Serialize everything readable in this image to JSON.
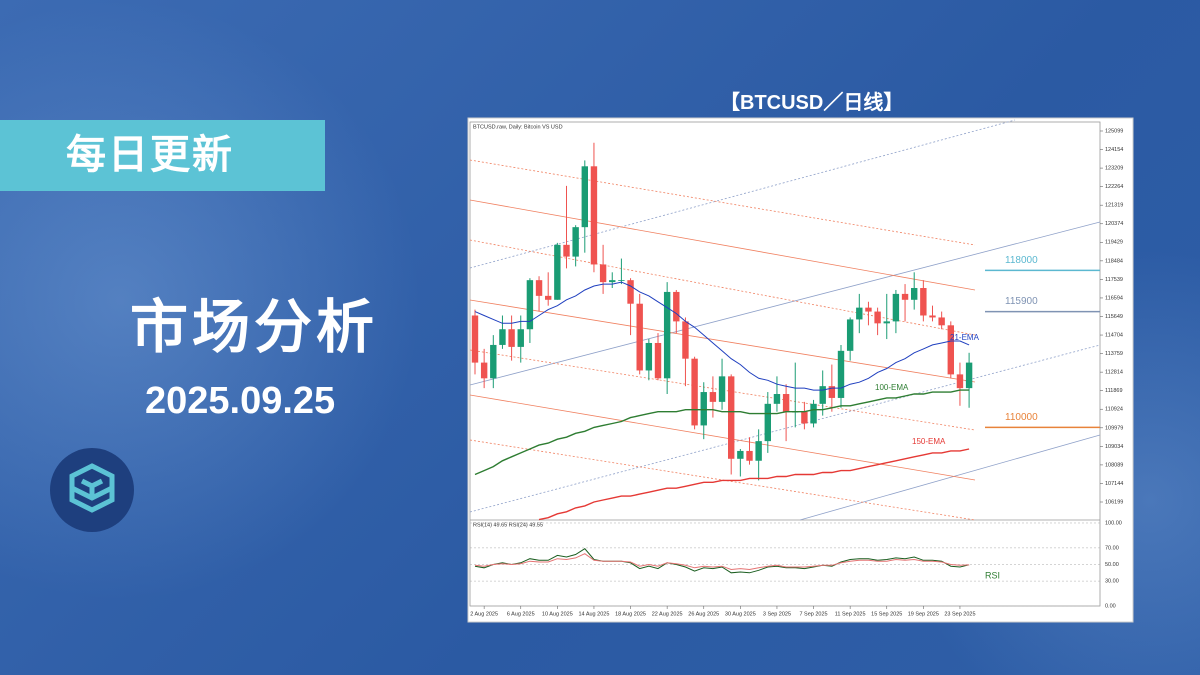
{
  "header": {
    "badge": "每日更新",
    "title": "市场分析",
    "date": "2025.09.25"
  },
  "chart_heading": "【BTCUSD／日线】",
  "chart_data": {
    "type": "candlestick",
    "title": "BTCUSD.raw, Daily: Bitcoin VS USD",
    "categories": [
      null,
      "2 Aug 2025",
      null,
      null,
      null,
      "6 Aug 2025",
      null,
      null,
      null,
      "10 Aug 2025",
      null,
      null,
      null,
      "14 Aug 2025",
      null,
      null,
      null,
      "18 Aug 2025",
      null,
      null,
      null,
      "22 Aug 2025",
      null,
      null,
      null,
      "26 Aug 2025",
      null,
      null,
      null,
      "30 Aug 2025",
      null,
      null,
      null,
      "3 Sep 2025",
      null,
      null,
      null,
      "7 Sep 2025",
      null,
      null,
      null,
      "11 Sep 2025",
      null,
      null,
      null,
      "15 Sep 2025",
      null,
      null,
      null,
      "19 Sep 2025",
      null,
      null,
      null,
      "23 Sep 2025",
      null
    ],
    "open": [
      115700,
      113300,
      112500,
      114200,
      115000,
      114100,
      115000,
      117500,
      116700,
      116500,
      119300,
      118700,
      120200,
      123300,
      118300,
      117400,
      117500,
      117500,
      116300,
      112900,
      114300,
      112500,
      116900,
      115400,
      113500,
      110100,
      111800,
      111300,
      112600,
      108400,
      108800,
      108300,
      109300,
      111200,
      111700,
      110800,
      110800,
      110200,
      111200,
      112100,
      111500,
      113900,
      115500,
      116100,
      115900,
      115300,
      115400,
      116800,
      116500,
      117100,
      115700,
      115600,
      115200,
      112700,
      112000
    ],
    "high": [
      116000,
      114000,
      114700,
      115700,
      115700,
      115700,
      117600,
      117700,
      117900,
      119400,
      122300,
      120300,
      123600,
      124500,
      119300,
      117900,
      118600,
      117600,
      116800,
      114500,
      114800,
      117400,
      117000,
      115600,
      113600,
      112300,
      112600,
      113500,
      112700,
      108900,
      109500,
      109900,
      111800,
      112600,
      112200,
      113300,
      111300,
      111400,
      112900,
      113200,
      114200,
      115600,
      116800,
      116400,
      116100,
      116800,
      117000,
      117300,
      117900,
      117500,
      116200,
      115900,
      115400,
      113300,
      113800
    ],
    "low": [
      112700,
      112000,
      112000,
      114000,
      113400,
      113300,
      114300,
      115900,
      116200,
      116500,
      118100,
      118200,
      118900,
      117900,
      116800,
      117100,
      117300,
      114700,
      112700,
      112400,
      112400,
      111700,
      114800,
      112100,
      109900,
      109400,
      110500,
      110900,
      107600,
      107500,
      108100,
      107300,
      108700,
      110800,
      109300,
      110000,
      109900,
      110000,
      110600,
      110800,
      111000,
      113400,
      114800,
      115200,
      114700,
      114500,
      114800,
      115400,
      116000,
      115400,
      115400,
      115000,
      112500,
      111100,
      111000
    ],
    "close": [
      113300,
      112500,
      114200,
      115000,
      114100,
      115000,
      117500,
      116700,
      116500,
      119300,
      118700,
      120200,
      123300,
      118300,
      117400,
      117500,
      117500,
      116300,
      112900,
      114300,
      112500,
      116900,
      115400,
      113500,
      110100,
      111800,
      111300,
      112600,
      108400,
      108800,
      108300,
      109300,
      111200,
      111700,
      110800,
      110800,
      110200,
      111200,
      112100,
      111500,
      113900,
      115500,
      116100,
      115900,
      115300,
      115400,
      116800,
      116500,
      117100,
      115700,
      115600,
      115200,
      112700,
      112000,
      113300
    ],
    "up_color": "#1a9c74",
    "down_color": "#ef5350",
    "ylim": [
      105282,
      125557
    ],
    "yticks": [
      106199,
      107144,
      108089,
      109034,
      109979,
      110924,
      111869,
      112814,
      113759,
      114704,
      115649,
      116594,
      117539,
      118484,
      119429,
      120374,
      121319,
      122264,
      123209,
      124154,
      125099
    ],
    "overlays": [
      {
        "name": "21-EMA",
        "color": "#1f3fbf",
        "values": [
          115900,
          115700,
          115500,
          115300,
          115300,
          115400,
          115400,
          115700,
          116000,
          116200,
          116500,
          116700,
          117000,
          117200,
          117300,
          117300,
          117400,
          117200,
          116900,
          116700,
          116400,
          116100,
          115800,
          115400,
          115100,
          114700,
          114300,
          113900,
          113500,
          113200,
          112800,
          112500,
          112400,
          112200,
          112100,
          112000,
          112000,
          111900,
          111900,
          112000,
          112000,
          112200,
          112300,
          112500,
          112800,
          113000,
          113300,
          113500,
          113800,
          114000,
          114200,
          114300,
          114400,
          114400,
          114200
        ]
      },
      {
        "name": "100-EMA",
        "color": "#2e7d32",
        "values": [
          107600,
          107800,
          108000,
          108300,
          108500,
          108700,
          108900,
          109100,
          109200,
          109400,
          109500,
          109700,
          109800,
          110000,
          110100,
          110200,
          110300,
          110500,
          110600,
          110700,
          110800,
          110800,
          110800,
          110900,
          110900,
          110900,
          110900,
          110800,
          110800,
          110800,
          110700,
          110700,
          110700,
          110700,
          110800,
          110800,
          110800,
          110900,
          110900,
          111000,
          111100,
          111100,
          111200,
          111300,
          111400,
          111500,
          111500,
          111600,
          111700,
          111700,
          111800,
          111800,
          111800,
          111900,
          111900
        ]
      },
      {
        "name": "150-EMA",
        "color": "#e53935",
        "values": [
          null,
          null,
          null,
          null,
          null,
          null,
          null,
          105300,
          105400,
          105600,
          105700,
          105900,
          106000,
          106200,
          106300,
          106400,
          106500,
          106500,
          106600,
          106700,
          106800,
          106900,
          106900,
          107000,
          107100,
          107200,
          107200,
          107300,
          107300,
          107300,
          107400,
          107400,
          107400,
          107500,
          107500,
          107600,
          107600,
          107600,
          107700,
          107700,
          107800,
          107800,
          107900,
          108000,
          108100,
          108200,
          108300,
          108400,
          108500,
          108600,
          108700,
          108700,
          108800,
          108800,
          108900
        ]
      }
    ],
    "levels": [
      {
        "value": 118000,
        "color": "#5bb8d0"
      },
      {
        "value": 115900,
        "color": "#7f93b3"
      },
      {
        "value": 110000,
        "color": "#e8833a"
      }
    ],
    "rsi": {
      "label": "RSI(14) 49.65 RSI(24) 49.55",
      "name": "RSI",
      "ylim": [
        0,
        103.6
      ],
      "yticks": [
        {
          "value": 0,
          "label": "0.00"
        },
        {
          "value": 30,
          "label": "30.00"
        },
        {
          "value": 50,
          "label": "50.00"
        },
        {
          "value": 70,
          "label": "70.00"
        },
        {
          "value": 100,
          "label": "100.00"
        }
      ],
      "series": [
        {
          "color": "#1b5e20",
          "values": [
            48,
            46,
            50,
            52,
            50,
            52,
            57,
            55,
            55,
            61,
            59,
            62,
            69,
            56,
            54,
            54,
            54,
            52,
            45,
            48,
            45,
            52,
            50,
            47,
            42,
            46,
            45,
            47,
            40,
            41,
            40,
            43,
            47,
            48,
            46,
            46,
            45,
            47,
            49,
            48,
            53,
            56,
            57,
            57,
            55,
            56,
            58,
            57,
            59,
            55,
            55,
            54,
            48,
            47,
            49.65
          ]
        },
        {
          "color": "#e57373",
          "values": [
            49,
            48,
            50,
            51,
            50,
            51,
            54,
            53,
            53,
            57,
            56,
            58,
            63,
            55,
            54,
            54,
            54,
            53,
            48,
            50,
            48,
            52,
            51,
            49,
            46,
            48,
            47,
            48,
            44,
            45,
            44,
            46,
            48,
            49,
            47,
            47,
            47,
            48,
            49,
            49,
            52,
            54,
            55,
            55,
            54,
            54,
            56,
            55,
            56,
            54,
            54,
            53,
            50,
            49,
            49.55
          ]
        }
      ]
    }
  }
}
